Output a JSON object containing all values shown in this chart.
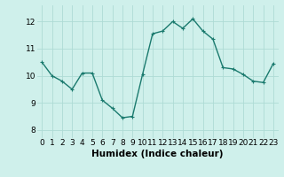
{
  "x": [
    0,
    1,
    2,
    3,
    4,
    5,
    6,
    7,
    8,
    9,
    10,
    11,
    12,
    13,
    14,
    15,
    16,
    17,
    18,
    19,
    20,
    21,
    22,
    23
  ],
  "y": [
    10.5,
    10.0,
    9.8,
    9.5,
    10.1,
    10.1,
    9.1,
    8.8,
    8.45,
    8.5,
    10.05,
    11.55,
    11.65,
    12.0,
    11.75,
    12.1,
    11.65,
    11.35,
    10.3,
    10.25,
    10.05,
    9.8,
    9.75,
    10.45
  ],
  "line_color": "#1a7a6e",
  "marker": "+",
  "marker_size": 3,
  "bg_color": "#cff0eb",
  "grid_color": "#aedbd5",
  "xlabel": "Humidex (Indice chaleur)",
  "xlabel_fontsize": 7.5,
  "ylim": [
    7.7,
    12.6
  ],
  "xlim": [
    -0.5,
    23.5
  ],
  "yticks": [
    8,
    9,
    10,
    11,
    12
  ],
  "xticks": [
    0,
    1,
    2,
    3,
    4,
    5,
    6,
    7,
    8,
    9,
    10,
    11,
    12,
    13,
    14,
    15,
    16,
    17,
    18,
    19,
    20,
    21,
    22,
    23
  ],
  "tick_fontsize": 6.5,
  "line_width": 1.0
}
